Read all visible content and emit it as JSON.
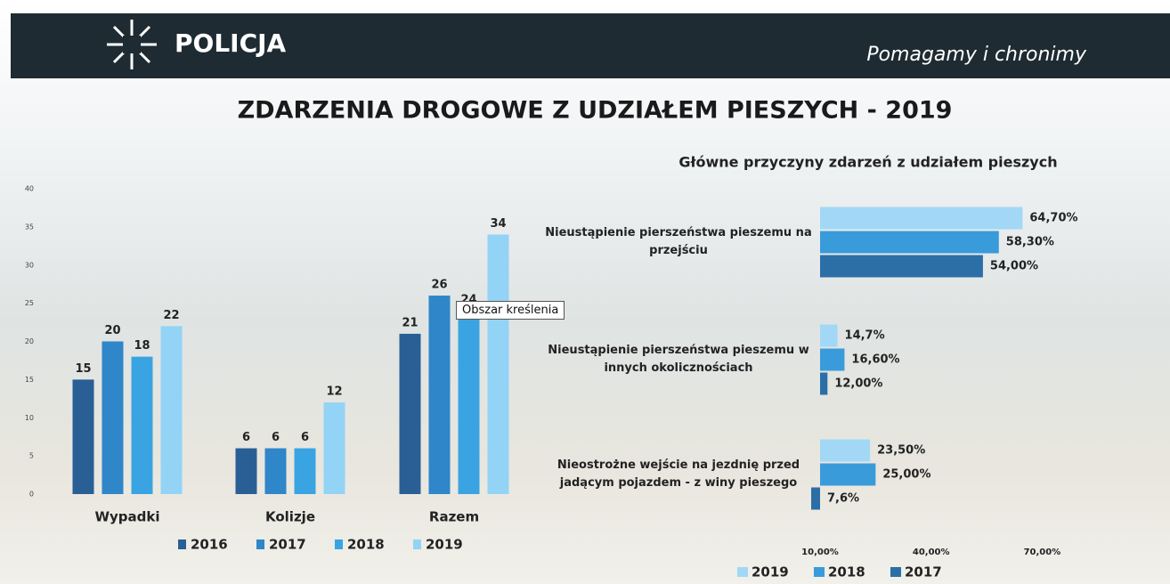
{
  "header": {
    "logo": "POLICJA",
    "slogan": "Pomagamy i chronimy"
  },
  "title": "ZDARZENIA DROGOWE Z UDZIAŁEM PIESZYCH - 2019",
  "tooltip": "Obszar kreślenia",
  "chart_data": [
    {
      "type": "bar",
      "categories": [
        "Wypadki",
        "Kolizje",
        "Razem"
      ],
      "series": [
        {
          "name": "2016",
          "color": "#2a5f95",
          "values": [
            15,
            6,
            21
          ]
        },
        {
          "name": "2017",
          "color": "#2f86c9",
          "values": [
            20,
            6,
            26
          ]
        },
        {
          "name": "2018",
          "color": "#3aa4e2",
          "values": [
            18,
            6,
            24
          ]
        },
        {
          "name": "2019",
          "color": "#93d3f6",
          "values": [
            22,
            12,
            34
          ]
        }
      ],
      "ylim": [
        0,
        40
      ],
      "yticks": [
        0,
        5,
        10,
        15,
        20,
        25,
        30,
        35,
        40
      ],
      "legend": "bottom"
    },
    {
      "type": "barh",
      "title": "Główne przyczyny zdarzeń z udziałem pieszych",
      "categories": [
        "Nieustąpienie pierszeństwa pieszemu na przejściu",
        "Nieustąpienie pierszeństwa pieszemu w innych okolicznościach",
        "Nieostrożne wejście na jezdnię przed jadącym pojazdem - z winy pieszego"
      ],
      "series": [
        {
          "name": "2019",
          "color": "#a2d8f6",
          "values": [
            64.7,
            14.7,
            23.5
          ],
          "value_labels": [
            "64,70%",
            "14,7%",
            "23,50%"
          ]
        },
        {
          "name": "2018",
          "color": "#3a9bda",
          "values": [
            58.3,
            16.6,
            25.0
          ],
          "value_labels": [
            "58,30%",
            "16,60%",
            "25,00%"
          ]
        },
        {
          "name": "2017",
          "color": "#2c6ea6",
          "values": [
            54.0,
            12.0,
            7.6
          ],
          "value_labels": [
            "54,00%",
            "12,00%",
            "7,6%"
          ]
        }
      ],
      "xlim": [
        10,
        80
      ],
      "xticks": [
        {
          "value": 10,
          "label": "10,00%"
        },
        {
          "value": 40,
          "label": "40,00%"
        },
        {
          "value": 70,
          "label": "70,00%"
        }
      ],
      "legend": "bottom"
    }
  ]
}
